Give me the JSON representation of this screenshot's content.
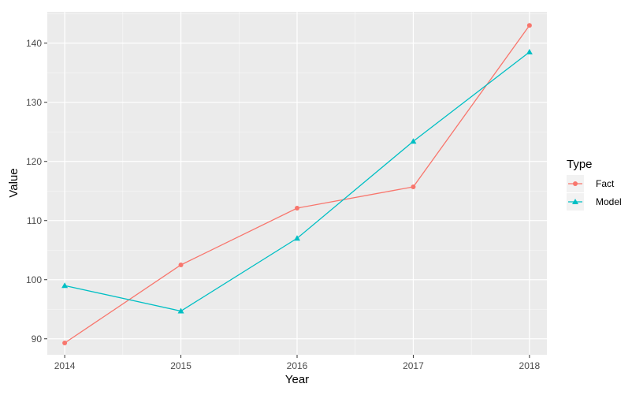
{
  "chart_data": {
    "type": "line",
    "title": "",
    "xlabel": "Year",
    "ylabel": "Value",
    "x": [
      2014,
      2015,
      2016,
      2017,
      2018
    ],
    "xlim": [
      2013.85,
      2018.15
    ],
    "ylim": [
      87.3,
      145.3
    ],
    "x_ticks": [
      2014,
      2015,
      2016,
      2017,
      2018
    ],
    "y_ticks": [
      90,
      100,
      110,
      120,
      130,
      140
    ],
    "grid": true,
    "legend": {
      "title": "Type",
      "position": "right"
    },
    "series": [
      {
        "name": "Fact",
        "color": "#F8766D",
        "marker": "circle",
        "values": [
          89.3,
          102.5,
          112.1,
          115.7,
          143.0
        ]
      },
      {
        "name": "Model",
        "color": "#00BFC4",
        "marker": "triangle",
        "values": [
          99.0,
          94.7,
          107.0,
          123.4,
          138.5
        ]
      }
    ]
  },
  "colors": {
    "panel_background": "#EBEBEB",
    "grid_major": "#FFFFFF",
    "axis_text": "#4D4D4D",
    "axis_title": "#000000"
  }
}
